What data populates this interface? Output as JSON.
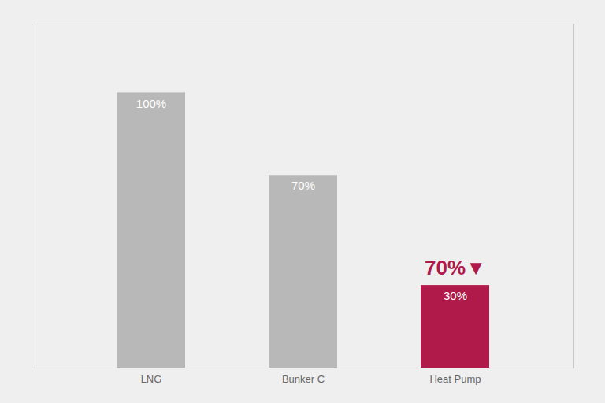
{
  "chart_data": {
    "type": "bar",
    "categories": [
      "LNG",
      "Bunker C",
      "Heat Pump"
    ],
    "values": [
      100,
      70,
      30
    ],
    "value_labels": [
      "100%",
      "70%",
      "30%"
    ],
    "colors": [
      "#b8b8b8",
      "#b8b8b8",
      "#b01a4a"
    ],
    "ylim": [
      0,
      125
    ],
    "data_labels": true,
    "tick_labels": "x",
    "grid": false,
    "annotations": [
      {
        "text": "70%▼",
        "category": "Heat Pump",
        "color": "#b01a4a"
      }
    ]
  }
}
